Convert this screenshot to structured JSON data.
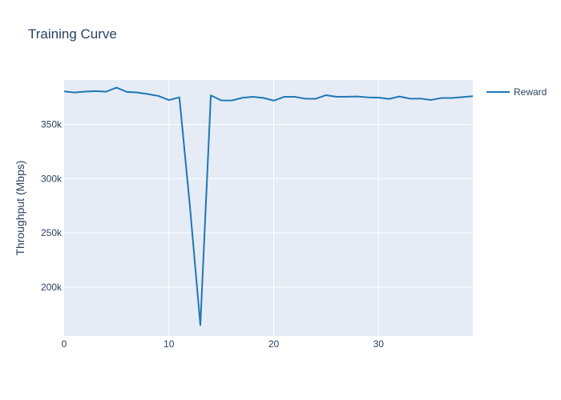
{
  "chart_data": {
    "type": "line",
    "title": "Training Curve",
    "xlabel": "",
    "ylabel": "Throughput (Mbps)",
    "xlim": [
      0,
      39
    ],
    "ylim": [
      155000,
      391000
    ],
    "x_ticks": [
      0,
      10,
      20,
      30
    ],
    "y_ticks": [
      200000,
      250000,
      300000,
      350000
    ],
    "y_tick_labels": [
      "200k",
      "250k",
      "300k",
      "350k"
    ],
    "grid": true,
    "legend_position": "top-right",
    "series": [
      {
        "name": "Reward",
        "color": "#1f77b4",
        "x": [
          0,
          1,
          2,
          3,
          4,
          5,
          6,
          7,
          8,
          9,
          10,
          11,
          12,
          13,
          14,
          15,
          16,
          17,
          18,
          19,
          20,
          21,
          22,
          23,
          24,
          25,
          26,
          27,
          28,
          29,
          30,
          31,
          32,
          33,
          34,
          35,
          36,
          37,
          38,
          39
        ],
        "y": [
          380500,
          379500,
          380300,
          380800,
          380200,
          384000,
          380000,
          379500,
          378000,
          376300,
          372500,
          375000,
          275000,
          165000,
          376800,
          372200,
          372100,
          374600,
          375500,
          374500,
          372000,
          375500,
          375500,
          373800,
          373700,
          377000,
          375500,
          375600,
          375800,
          375000,
          374800,
          373600,
          375800,
          373800,
          373900,
          372600,
          374400,
          374400,
          375200,
          376100
        ]
      }
    ],
    "colors": {
      "plot_bg": "#e5ecf6",
      "grid": "#ffffff",
      "text": "#2a3f5f",
      "line": "#1f77b4"
    }
  }
}
